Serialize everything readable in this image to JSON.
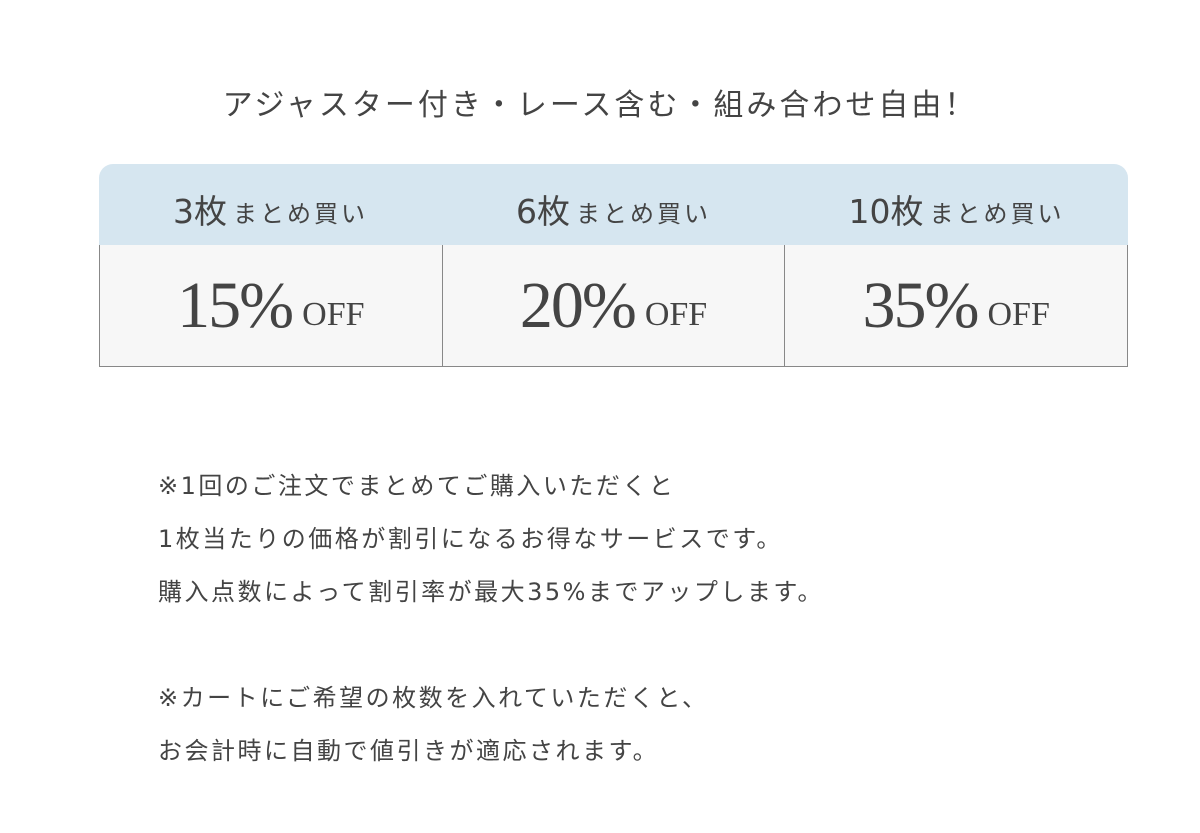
{
  "headline": "アジャスター付き・レース含む・組み合わせ自由！",
  "colors": {
    "header_bg": "#d6e6f0",
    "cell_bg": "#f7f7f7",
    "text": "#444444",
    "border": "#888888"
  },
  "tiers": [
    {
      "count": "3枚",
      "label": "まとめ買い",
      "discount": "15%",
      "off": "OFF"
    },
    {
      "count": "6枚",
      "label": "まとめ買い",
      "discount": "20%",
      "off": "OFF"
    },
    {
      "count": "10枚",
      "label": "まとめ買い",
      "discount": "35%",
      "off": "OFF"
    }
  ],
  "notes": {
    "block1": [
      "※1回のご注文でまとめてご購入いただくと",
      "1枚当たりの価格が割引になるお得なサービスです。",
      "購入点数によって割引率が最大35%までアップします。"
    ],
    "block2": [
      "※カートにご希望の枚数を入れていただくと、",
      "お会計時に自動で値引きが適応されます。"
    ]
  }
}
